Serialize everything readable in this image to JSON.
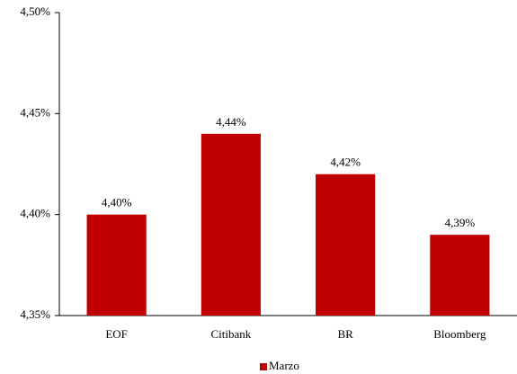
{
  "chart_data": {
    "type": "bar",
    "categories": [
      "EOF",
      "Citibank",
      "BR",
      "Bloomberg"
    ],
    "series": [
      {
        "name": "Marzo",
        "color": "#c00000",
        "values": [
          4.4,
          4.44,
          4.42,
          4.39
        ],
        "value_labels": [
          "4,40%",
          "4,44%",
          "4,42%",
          "4,39%"
        ]
      }
    ],
    "ylim": [
      4.35,
      4.5
    ],
    "yticks": [
      {
        "value": 4.35,
        "label": "4,35%"
      },
      {
        "value": 4.4,
        "label": "4,40%"
      },
      {
        "value": 4.45,
        "label": "4,45%"
      },
      {
        "value": 4.5,
        "label": "4,50%"
      }
    ],
    "legend": "bottom"
  }
}
